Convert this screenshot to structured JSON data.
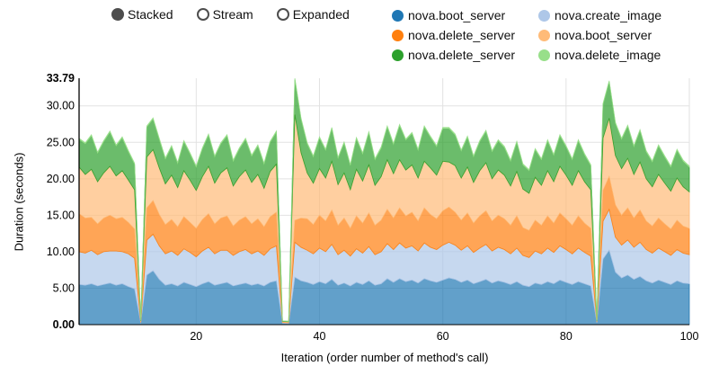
{
  "controls": {
    "options": [
      {
        "label": "Stacked",
        "selected": true
      },
      {
        "label": "Stream",
        "selected": false
      },
      {
        "label": "Expanded",
        "selected": false
      }
    ]
  },
  "legend": {
    "items": [
      {
        "label": "nova.boot_server",
        "color": "#1f77b4"
      },
      {
        "label": "nova.create_image",
        "color": "#aec7e8"
      },
      {
        "label": "nova.delete_server",
        "color": "#ff7f0e"
      },
      {
        "label": "nova.boot_server",
        "color": "#ffbb78"
      },
      {
        "label": "nova.delete_server",
        "color": "#2ca02c"
      },
      {
        "label": "nova.delete_image",
        "color": "#98df8a"
      }
    ]
  },
  "chart_data": {
    "type": "area",
    "variant": "stacked",
    "title": "",
    "xlabel": "Iteration (order number of method's call)",
    "ylabel": "Duration (seconds)",
    "xlim": [
      1,
      100
    ],
    "ylim": [
      0,
      33.79
    ],
    "grid": true,
    "legend_position": "top-right",
    "xticks": [
      20,
      40,
      60,
      80,
      100
    ],
    "xtick_labels": [
      "20",
      "40",
      "60",
      "80",
      "100"
    ],
    "yticks": [
      0,
      5,
      10,
      15,
      20,
      25,
      30
    ],
    "ytick_labels": [
      "0.00",
      "5.00",
      "10.00",
      "15.00",
      "20.00",
      "25.00",
      "30.00"
    ],
    "ymax_value": 33.79,
    "ymax_label": "33.79",
    "ymin_label": "0.00",
    "x": [
      1,
      2,
      3,
      4,
      5,
      6,
      7,
      8,
      9,
      10,
      11,
      12,
      13,
      14,
      15,
      16,
      17,
      18,
      19,
      20,
      21,
      22,
      23,
      24,
      25,
      26,
      27,
      28,
      29,
      30,
      31,
      32,
      33,
      34,
      35,
      36,
      37,
      38,
      39,
      40,
      41,
      42,
      43,
      44,
      45,
      46,
      47,
      48,
      49,
      50,
      51,
      52,
      53,
      54,
      55,
      56,
      57,
      58,
      59,
      60,
      61,
      62,
      63,
      64,
      65,
      66,
      67,
      68,
      69,
      70,
      71,
      72,
      73,
      74,
      75,
      76,
      77,
      78,
      79,
      80,
      81,
      82,
      83,
      84,
      85,
      86,
      87,
      88,
      89,
      90,
      91,
      92,
      93,
      94,
      95,
      96,
      97,
      98,
      99,
      100
    ],
    "series": [
      {
        "name": "nova.boot_server",
        "color": "#1f77b4",
        "values": [
          5.5,
          5.4,
          5.6,
          5.3,
          5.5,
          5.7,
          5.4,
          5.6,
          5.2,
          4.9,
          0.2,
          6.8,
          7.4,
          6.2,
          5.4,
          5.6,
          5.3,
          5.8,
          5.5,
          5.2,
          5.6,
          5.9,
          5.4,
          5.6,
          5.8,
          5.3,
          5.5,
          5.7,
          5.4,
          5.6,
          5.3,
          5.8,
          6.0,
          0.2,
          0.15,
          6.5,
          6.0,
          5.8,
          5.5,
          5.9,
          5.6,
          6.2,
          5.4,
          5.7,
          5.3,
          5.8,
          5.5,
          6.0,
          5.4,
          5.6,
          6.3,
          5.8,
          6.3,
          5.9,
          6.1,
          5.7,
          6.3,
          6.0,
          5.8,
          6.1,
          6.4,
          6.2,
          5.8,
          6.1,
          5.6,
          5.9,
          6.2,
          5.7,
          6.0,
          5.8,
          5.5,
          5.9,
          5.4,
          5.2,
          5.7,
          5.5,
          5.9,
          5.6,
          6.1,
          5.8,
          5.5,
          5.9,
          5.6,
          5.3,
          0.25,
          9.0,
          10.2,
          7.2,
          6.4,
          6.8,
          6.2,
          6.6,
          6.0,
          5.7,
          6.1,
          5.8,
          5.5,
          6.0,
          5.7,
          5.6
        ]
      },
      {
        "name": "nova.create_image",
        "color": "#aec7e8",
        "values": [
          4.5,
          4.4,
          4.6,
          4.3,
          4.5,
          4.4,
          4.7,
          4.4,
          4.5,
          4.2,
          0.1,
          4.8,
          5.0,
          4.6,
          4.3,
          4.5,
          4.2,
          4.6,
          4.4,
          4.1,
          4.5,
          4.7,
          4.3,
          4.6,
          4.4,
          4.2,
          4.5,
          4.6,
          4.3,
          4.5,
          4.2,
          4.6,
          4.8,
          0.1,
          0.1,
          4.8,
          4.6,
          4.4,
          4.2,
          4.6,
          4.4,
          4.8,
          4.2,
          4.5,
          4.1,
          4.6,
          4.3,
          4.7,
          4.2,
          4.4,
          4.8,
          4.5,
          4.9,
          4.6,
          4.7,
          4.4,
          4.9,
          4.6,
          4.5,
          4.8,
          4.9,
          4.7,
          4.4,
          4.7,
          4.3,
          4.6,
          4.8,
          4.4,
          4.6,
          4.5,
          4.2,
          4.6,
          4.1,
          4.0,
          4.4,
          4.2,
          4.6,
          4.3,
          4.7,
          4.5,
          4.2,
          4.6,
          4.3,
          4.1,
          0.1,
          5.2,
          5.6,
          4.8,
          4.5,
          4.8,
          4.4,
          4.7,
          4.3,
          4.1,
          4.4,
          4.2,
          4.0,
          4.3,
          4.1,
          4.0
        ]
      },
      {
        "name": "nova.delete_server",
        "color": "#ff7f0e",
        "values": [
          5.2,
          4.8,
          4.5,
          4.2,
          4.6,
          4.9,
          4.4,
          4.7,
          4.3,
          4.0,
          0.1,
          4.4,
          4.6,
          4.3,
          4.0,
          4.3,
          3.9,
          4.4,
          4.1,
          3.9,
          4.3,
          4.6,
          4.1,
          4.4,
          4.7,
          4.0,
          4.3,
          4.5,
          4.1,
          4.4,
          3.9,
          4.4,
          4.6,
          0.05,
          0.05,
          3.0,
          4.0,
          4.3,
          4.0,
          4.5,
          4.2,
          4.7,
          4.0,
          4.4,
          3.8,
          4.5,
          4.1,
          4.6,
          4.0,
          4.3,
          4.7,
          4.3,
          4.8,
          4.4,
          4.6,
          4.1,
          4.8,
          4.5,
          4.2,
          4.7,
          4.8,
          4.5,
          4.1,
          4.5,
          4.0,
          4.4,
          4.6,
          4.1,
          4.4,
          4.2,
          3.9,
          4.4,
          3.8,
          3.7,
          4.2,
          3.9,
          4.4,
          4.0,
          4.5,
          4.2,
          3.9,
          4.4,
          4.0,
          3.8,
          0.05,
          4.2,
          4.5,
          4.4,
          4.1,
          4.4,
          4.0,
          4.4,
          3.9,
          3.7,
          4.1,
          3.8,
          3.6,
          4.0,
          3.7,
          3.6
        ]
      },
      {
        "name": "nova.boot_server",
        "color": "#ffbb78",
        "values": [
          6.4,
          6.0,
          6.6,
          5.8,
          6.2,
          6.7,
          5.9,
          6.4,
          5.8,
          5.4,
          0.1,
          7.0,
          7.0,
          6.4,
          5.6,
          6.1,
          5.4,
          6.3,
          5.8,
          5.2,
          5.9,
          6.5,
          5.6,
          6.2,
          6.6,
          5.5,
          6.0,
          6.4,
          5.7,
          6.1,
          5.3,
          6.2,
          6.6,
          0.1,
          0.1,
          14.5,
          9.0,
          6.3,
          5.7,
          6.4,
          5.9,
          6.7,
          5.6,
          6.2,
          5.3,
          6.4,
          5.8,
          6.6,
          5.5,
          6.0,
          6.8,
          6.1,
          6.6,
          6.3,
          6.5,
          5.9,
          6.4,
          6.4,
          6.0,
          6.8,
          6.2,
          6.4,
          5.8,
          6.3,
          5.6,
          6.2,
          6.6,
          5.8,
          6.2,
          6.0,
          5.4,
          6.1,
          5.3,
          5.1,
          5.9,
          5.5,
          6.2,
          5.7,
          6.4,
          6.0,
          5.5,
          6.2,
          5.7,
          5.3,
          0.1,
          7.2,
          8.0,
          6.8,
          6.4,
          6.8,
          6.0,
          6.6,
          5.8,
          5.4,
          6.0,
          5.6,
          5.2,
          5.8,
          5.4,
          5.0
        ]
      },
      {
        "name": "nova.delete_server",
        "color": "#2ca02c",
        "values": [
          3.8,
          4.2,
          4.6,
          3.9,
          4.3,
          4.7,
          4.1,
          4.5,
          3.9,
          3.5,
          0.05,
          4.1,
          4.2,
          3.9,
          3.4,
          3.9,
          3.3,
          4.0,
          3.6,
          3.2,
          3.8,
          4.3,
          3.6,
          4.0,
          4.4,
          3.4,
          3.8,
          4.2,
          3.6,
          3.9,
          3.3,
          4.0,
          4.4,
          0.05,
          0.05,
          4.8,
          4.6,
          4.0,
          3.6,
          4.2,
          3.8,
          4.5,
          3.6,
          4.1,
          3.3,
          4.2,
          3.7,
          4.4,
          3.5,
          3.9,
          4.5,
          4.0,
          4.7,
          4.1,
          4.3,
          3.8,
          4.7,
          4.2,
          3.9,
          4.5,
          4.6,
          4.2,
          3.7,
          4.1,
          3.5,
          4.0,
          4.3,
          3.7,
          4.0,
          3.8,
          3.4,
          4.0,
          3.3,
          3.1,
          3.8,
          3.5,
          4.1,
          3.6,
          4.2,
          3.9,
          3.5,
          4.1,
          3.7,
          3.3,
          0.05,
          4.6,
          5.0,
          4.4,
          4.0,
          4.4,
          3.8,
          4.3,
          3.7,
          3.4,
          3.9,
          3.6,
          3.3,
          3.8,
          3.5,
          3.4
        ]
      },
      {
        "name": "nova.delete_image",
        "color": "#98df8a",
        "values": [
          0.15,
          0.15,
          0.15,
          0.15,
          0.15,
          0.15,
          0.15,
          0.15,
          0.15,
          0.15,
          0.02,
          0.15,
          0.15,
          0.15,
          0.15,
          0.15,
          0.15,
          0.15,
          0.15,
          0.15,
          0.15,
          0.15,
          0.15,
          0.15,
          0.15,
          0.15,
          0.15,
          0.15,
          0.15,
          0.15,
          0.15,
          0.15,
          0.15,
          0.02,
          0.02,
          0.19,
          0.15,
          0.15,
          0.15,
          0.15,
          0.15,
          0.15,
          0.15,
          0.15,
          0.15,
          0.15,
          0.15,
          0.15,
          0.15,
          0.15,
          0.15,
          0.15,
          0.15,
          0.15,
          0.15,
          0.15,
          0.15,
          0.15,
          0.15,
          0.15,
          0.15,
          0.15,
          0.15,
          0.15,
          0.15,
          0.15,
          0.15,
          0.15,
          0.15,
          0.15,
          0.15,
          0.15,
          0.15,
          0.15,
          0.15,
          0.15,
          0.15,
          0.15,
          0.15,
          0.15,
          0.15,
          0.15,
          0.15,
          0.15,
          0.02,
          0.15,
          0.15,
          0.15,
          0.15,
          0.15,
          0.15,
          0.15,
          0.15,
          0.15,
          0.15,
          0.15,
          0.15,
          0.15,
          0.15,
          0.15
        ]
      }
    ]
  }
}
